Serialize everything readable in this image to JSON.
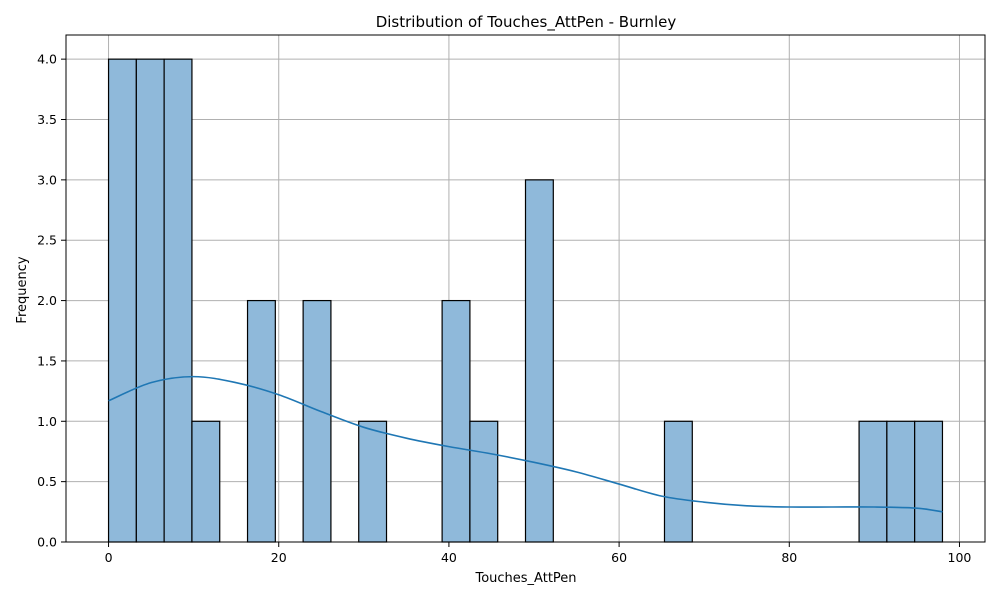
{
  "chart_data": {
    "type": "bar",
    "title": "Distribution of Touches_AttPen - Burnley",
    "xlabel": "Touches_AttPen",
    "ylabel": "Frequency",
    "xlim": [
      -5,
      103
    ],
    "ylim": [
      0,
      4.2
    ],
    "xticks": [
      0,
      20,
      40,
      60,
      80,
      100
    ],
    "xtick_labels": [
      "0",
      "20",
      "40",
      "60",
      "80",
      "100"
    ],
    "yticks": [
      0,
      0.5,
      1,
      1.5,
      2,
      2.5,
      3,
      3.5,
      4
    ],
    "ytick_labels": [
      "0.0",
      "0.5",
      "1.0",
      "1.5",
      "2.0",
      "2.5",
      "3.0",
      "3.5",
      "4.0"
    ],
    "grid": true,
    "bin_start": 0,
    "bin_width": 3.2667,
    "counts": [
      4,
      4,
      4,
      1,
      0,
      2,
      0,
      2,
      0,
      1,
      0,
      0,
      2,
      1,
      0,
      3,
      0,
      0,
      0,
      0,
      1,
      0,
      0,
      0,
      0,
      0,
      0,
      1,
      1,
      1
    ],
    "kde": {
      "x": [
        0,
        5,
        10,
        15,
        20,
        25,
        30,
        35,
        40,
        45,
        50,
        55,
        60,
        65,
        70,
        75,
        80,
        85,
        90,
        95,
        98
      ],
      "y": [
        1.17,
        1.32,
        1.37,
        1.32,
        1.22,
        1.08,
        0.95,
        0.86,
        0.79,
        0.73,
        0.66,
        0.58,
        0.48,
        0.38,
        0.33,
        0.3,
        0.29,
        0.29,
        0.29,
        0.28,
        0.25
      ]
    },
    "colors": {
      "bar_fill": "#8fb9da",
      "bar_edge": "#000000",
      "kde_line": "#1f77b4",
      "grid": "#b0b0b0"
    }
  }
}
